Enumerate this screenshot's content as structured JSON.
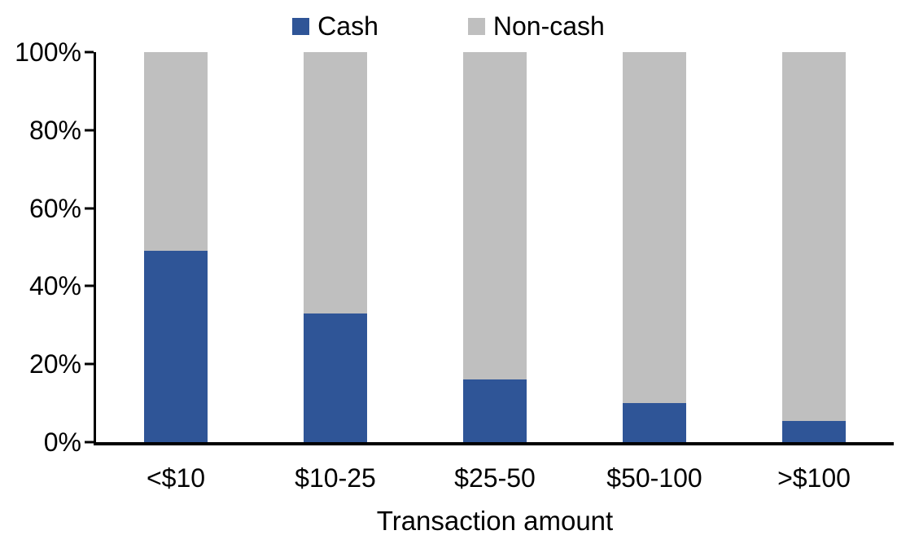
{
  "chart_data": {
    "type": "bar",
    "stacked": true,
    "stacked_total": 100,
    "orientation": "vertical",
    "title": "",
    "xlabel": "Transaction amount",
    "ylabel": "",
    "ylim": [
      0,
      100
    ],
    "grid": false,
    "legend_position": "top-center",
    "categories": [
      "<$10",
      "$10-25",
      "$25-50",
      "$50-100",
      ">$100"
    ],
    "series": [
      {
        "name": "Cash",
        "color": "#2F5597",
        "values": [
          49,
          33,
          16,
          10,
          5.5
        ]
      },
      {
        "name": "Non-cash",
        "color": "#BFBFBF",
        "values": [
          51,
          67,
          84,
          90,
          94.5
        ]
      }
    ],
    "yticks": [
      {
        "value": 0,
        "label": "0%"
      },
      {
        "value": 20,
        "label": "20%"
      },
      {
        "value": 40,
        "label": "40%"
      },
      {
        "value": 60,
        "label": "60%"
      },
      {
        "value": 80,
        "label": "80%"
      },
      {
        "value": 100,
        "label": "100%"
      }
    ],
    "axis_color": "#000000",
    "background_color": "#FFFFFF",
    "text_color": "#000000"
  }
}
